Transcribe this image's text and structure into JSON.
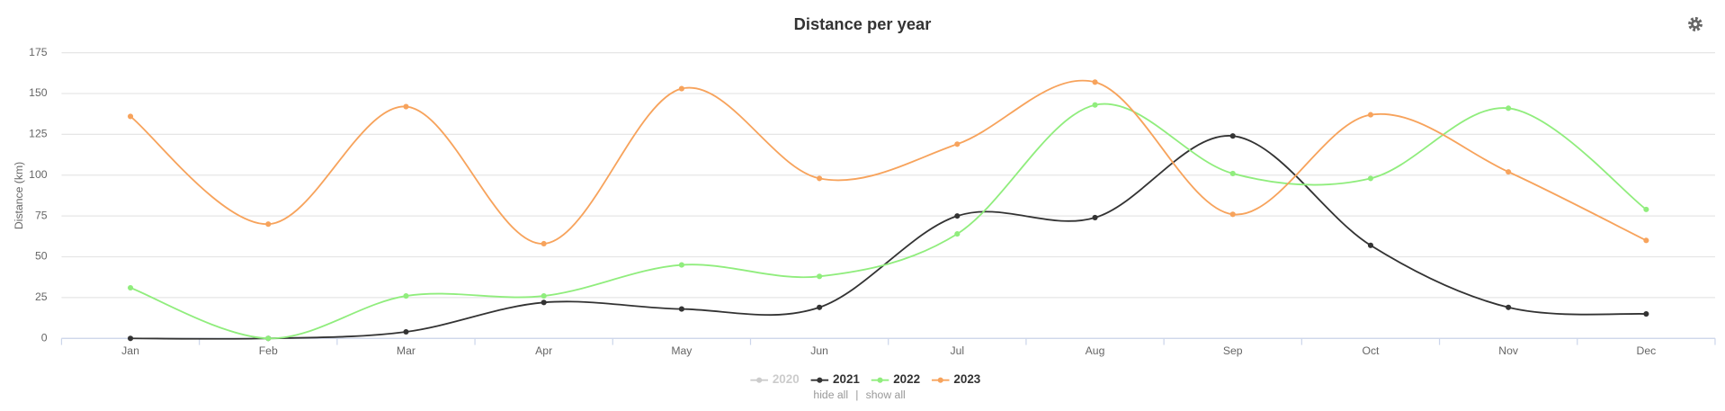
{
  "chart_data": {
    "type": "line",
    "title": "Distance per year",
    "y_label": "Distance (km)",
    "categories": [
      "Jan",
      "Feb",
      "Mar",
      "Apr",
      "May",
      "Jun",
      "Jul",
      "Aug",
      "Sep",
      "Oct",
      "Nov",
      "Dec"
    ],
    "series": [
      {
        "name": "2020",
        "color": "#cccccc",
        "hidden": true,
        "values": [
          null,
          null,
          null,
          null,
          null,
          null,
          null,
          null,
          null,
          null,
          null,
          null
        ]
      },
      {
        "name": "2021",
        "color": "#333333",
        "values": [
          0,
          0,
          4,
          22,
          18,
          19,
          75,
          74,
          124,
          57,
          19,
          15
        ]
      },
      {
        "name": "2022",
        "color": "#90ed7d",
        "values": [
          31,
          0,
          26,
          26,
          45,
          38,
          64,
          143,
          101,
          98,
          141,
          79
        ]
      },
      {
        "name": "2023",
        "color": "#f7a35c",
        "values": [
          136,
          70,
          142,
          58,
          153,
          98,
          119,
          157,
          76,
          137,
          102,
          60
        ]
      }
    ],
    "ylim": [
      0,
      175
    ],
    "yticks": [
      0,
      25,
      50,
      75,
      100,
      125,
      150,
      175
    ],
    "grid": true,
    "legend_position": "bottom",
    "legend_actions": [
      "hide all",
      "show all"
    ]
  }
}
